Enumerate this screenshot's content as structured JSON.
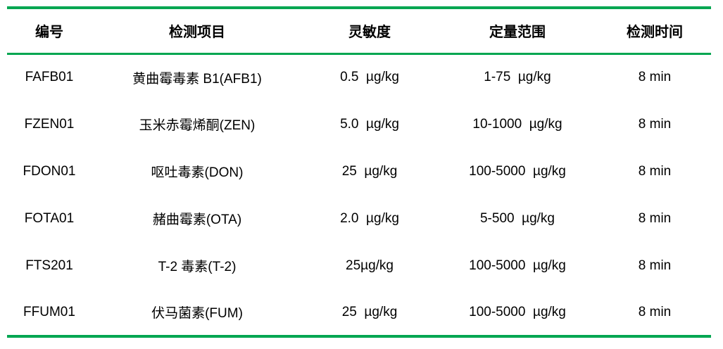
{
  "page": {
    "background_color": "#ffffff",
    "accent_green": "#00A651",
    "text_color": "#000000"
  },
  "table": {
    "columns": [
      {
        "key": "code",
        "label": "编号"
      },
      {
        "key": "item",
        "label": "检测项目"
      },
      {
        "key": "sensitivity",
        "label": "灵敏度"
      },
      {
        "key": "range",
        "label": "定量范围"
      },
      {
        "key": "time",
        "label": "检测时间"
      }
    ],
    "rows": [
      {
        "code": "FAFB01",
        "item": "黄曲霉毒素 B1(AFB1)",
        "sensitivity": "0.5  µg/kg",
        "range": "1-75  µg/kg",
        "time": "8 min"
      },
      {
        "code": "FZEN01",
        "item": "玉米赤霉烯酮(ZEN)",
        "sensitivity": "5.0  µg/kg",
        "range": "10-1000  µg/kg",
        "time": "8 min"
      },
      {
        "code": "FDON01",
        "item": "呕吐毒素(DON)",
        "sensitivity": "25  µg/kg",
        "range": "100-5000  µg/kg",
        "time": "8 min"
      },
      {
        "code": "FOTA01",
        "item": "赭曲霉素(OTA)",
        "sensitivity": "2.0  µg/kg",
        "range": "5-500  µg/kg",
        "time": "8 min"
      },
      {
        "code": "FTS201",
        "item": "T-2 毒素(T-2)",
        "sensitivity": "25µg/kg",
        "range": "100-5000  µg/kg",
        "time": "8 min"
      },
      {
        "code": "FFUM01",
        "item": "伏马菌素(FUM)",
        "sensitivity": "25  µg/kg",
        "range": "100-5000  µg/kg",
        "time": "8 min"
      }
    ]
  }
}
